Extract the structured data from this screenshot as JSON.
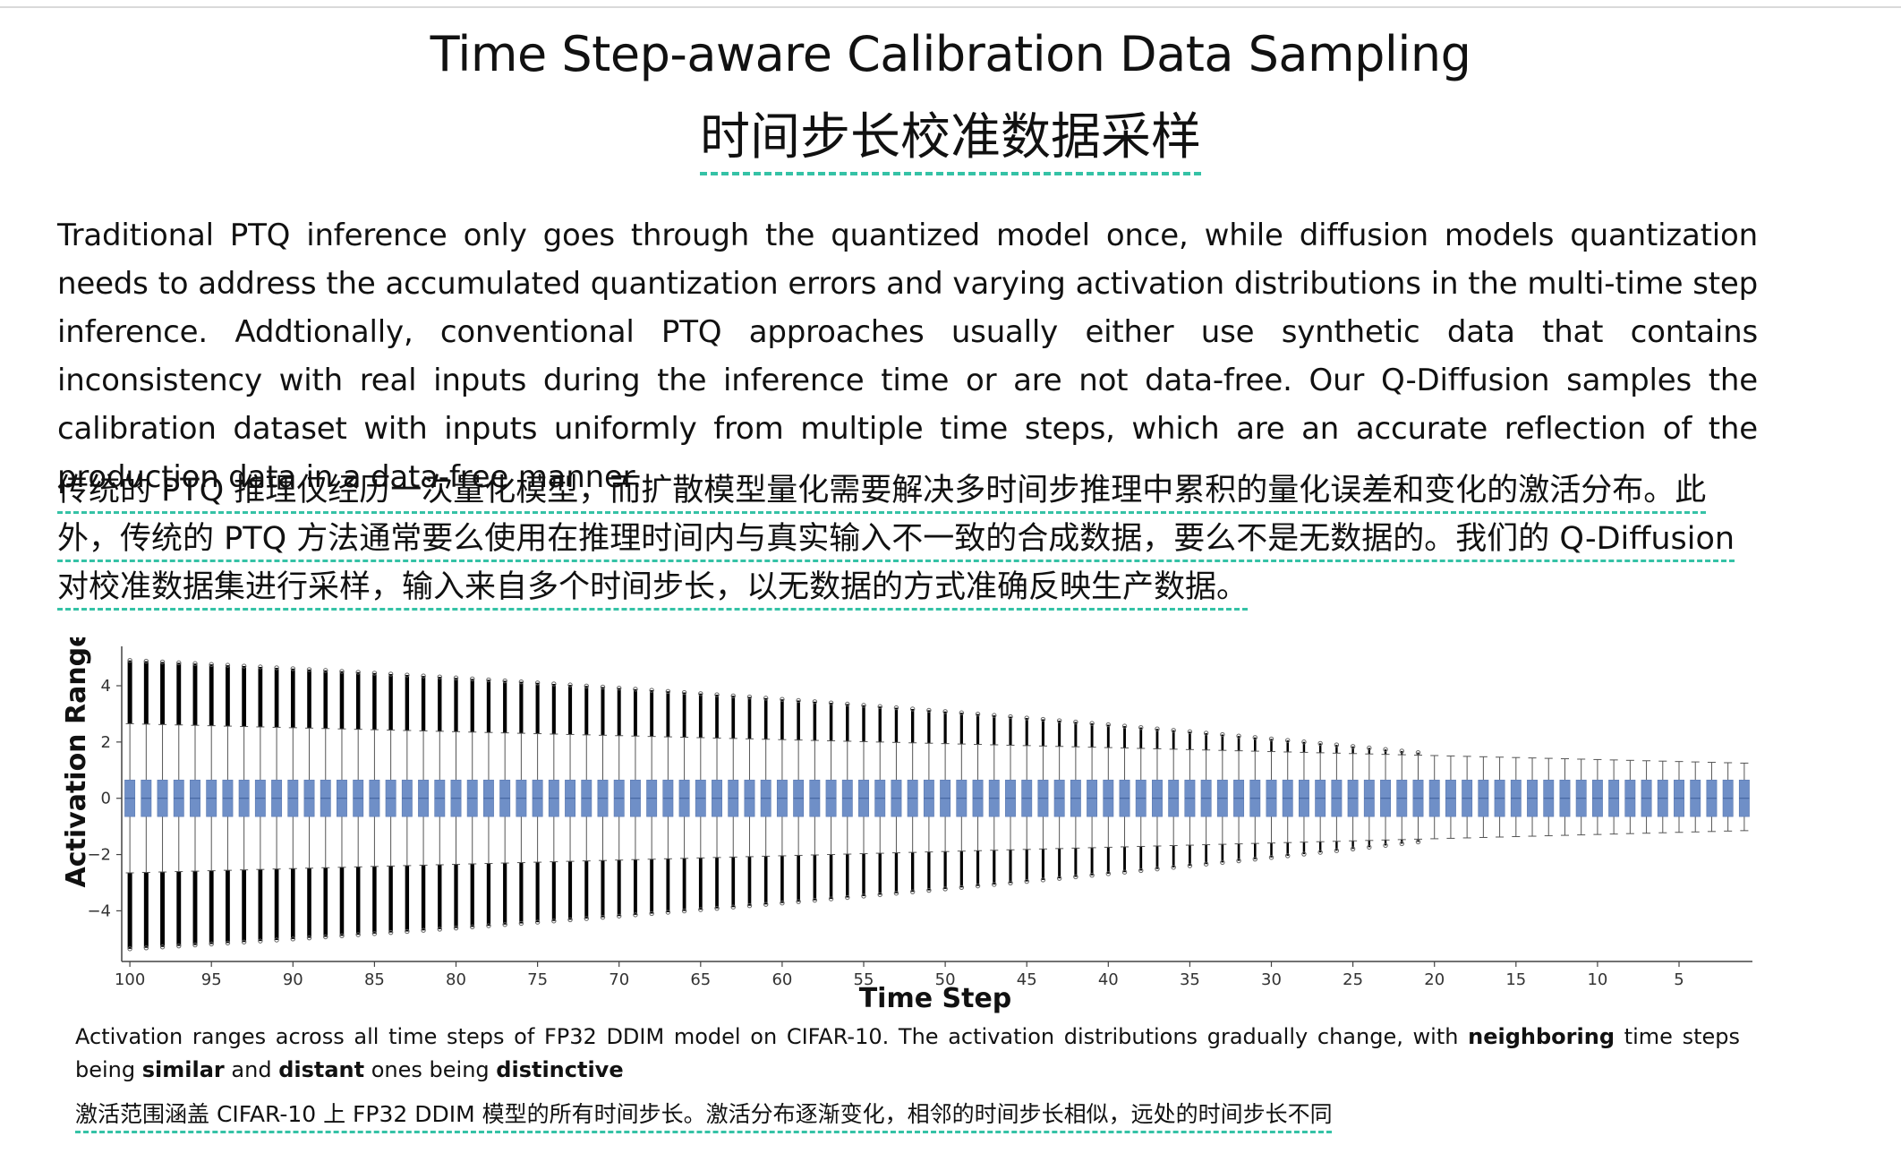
{
  "title_en": "Time Step-aware Calibration Data Sampling",
  "title_zh": "时间步长校准数据采样",
  "paragraph_en": "Traditional PTQ inference only goes through the quantized model once, while diffusion models quantization needs to address the accumulated quantization errors and varying activation distributions in the multi-time step inference. Addtionally, conventional PTQ approaches usually either use synthetic data that contains inconsistency with real inputs during the inference time or are not data-free. Our Q-Diffusion samples the calibration dataset with inputs uniformly from multiple time steps, which are an accurate reflection of the production data in a data-free manner.",
  "paragraph_zh": "传统的 PTQ 推理仅经历一次量化模型，而扩散模型量化需要解决多时间步推理中累积的量化误差和变化的激活分布。此外，传统的 PTQ 方法通常要么使用在推理时间内与真实输入不一致的合成数据，要么不是无数据的。我们的 Q-Diffusion 对校准数据集进行采样，输入来自多个时间步长，以无数据的方式准确反映生产数据。",
  "caption_en": {
    "p1": "Activation ranges across all time steps of FP32 DDIM model on CIFAR-10. The activation distributions gradually change, with ",
    "b1": "neighboring",
    "p2": " time steps being ",
    "b2": "similar",
    "p3": " and ",
    "b3": "distant",
    "p4": " ones being ",
    "b4": "distinctive"
  },
  "caption_zh": "激活范围涵盖 CIFAR-10 上 FP32 DDIM 模型的所有时间步长。激活分布逐渐变化，相邻的时间步长相似，远处的时间步长不同",
  "accent_color": "#35c2a6",
  "chart_data": {
    "type": "box",
    "xlabel": "Time Step",
    "ylabel": "Activation Range",
    "x_ticks": [
      "100",
      "95",
      "90",
      "85",
      "80",
      "75",
      "70",
      "65",
      "60",
      "55",
      "50",
      "45",
      "40",
      "35",
      "30",
      "25",
      "20",
      "15",
      "10",
      "5"
    ],
    "y_ticks": [
      "4",
      "2",
      "0",
      "−2",
      "−4"
    ],
    "ylim": [
      -5.8,
      5.4
    ],
    "x_range": [
      100,
      1
    ],
    "box_color": "#6f8fc7",
    "series": [
      {
        "time_step_start": 100,
        "time_step_end": 1,
        "q1": -0.65,
        "median": 0.0,
        "q3": 0.65,
        "whisker_low_start": -2.65,
        "whisker_low_end": -1.15,
        "whisker_high_start": 2.65,
        "whisker_high_end": 1.25,
        "outlier_max_start": 4.9,
        "outlier_min_start": -5.35,
        "outliers_end_step": 20
      }
    ]
  }
}
